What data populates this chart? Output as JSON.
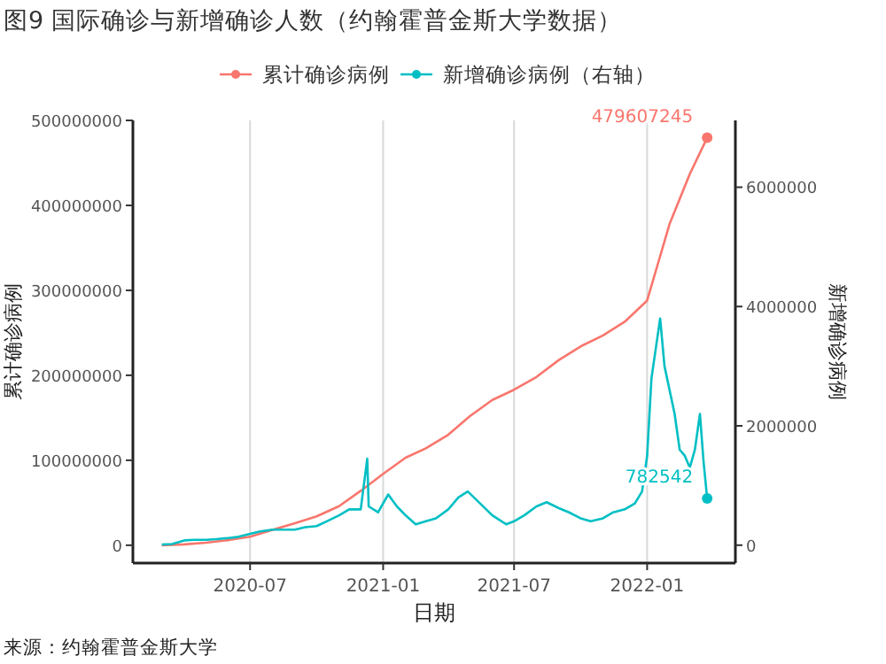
{
  "chart_data": {
    "type": "line",
    "title": "图9 国际确诊与新增确诊人数（约翰霍普金斯大学数据）",
    "xlabel": "日期",
    "ylabel": "累计确诊病例",
    "y2label": "新增确诊病例",
    "xlim": [
      "2020-01-21",
      "2022-05-03"
    ],
    "xticks": [
      {
        "value": "2020-07-01",
        "label": "2020-07"
      },
      {
        "value": "2021-01-01",
        "label": "2021-01"
      },
      {
        "value": "2021-07-01",
        "label": "2021-07"
      },
      {
        "value": "2022-01-01",
        "label": "2022-01"
      }
    ],
    "ylim": [
      -21000000,
      500000000
    ],
    "yticks": [
      0,
      100000000,
      200000000,
      300000000,
      400000000,
      500000000
    ],
    "y2lim": [
      -300000,
      7120000
    ],
    "y2ticks": [
      0,
      2000000,
      4000000,
      6000000
    ],
    "grid": "x",
    "legend": "top",
    "marker": "none",
    "line_style": "solid",
    "series": [
      {
        "name": "累计确诊病例",
        "color": "#f8766d",
        "x": [
          "2020-03-01",
          "2020-04-01",
          "2020-05-01",
          "2020-06-01",
          "2020-07-01",
          "2020-08-01",
          "2020-09-01",
          "2020-10-01",
          "2020-11-01",
          "2020-12-01",
          "2021-01-01",
          "2021-02-01",
          "2021-03-01",
          "2021-04-01",
          "2021-05-01",
          "2021-06-01",
          "2021-07-01",
          "2021-08-01",
          "2021-09-01",
          "2021-10-01",
          "2021-11-01",
          "2021-12-01",
          "2022-01-01",
          "2022-02-01",
          "2022-03-01",
          "2022-03-25"
        ],
        "values": [
          0,
          1000000,
          3000000,
          6000000,
          10000000,
          18000000,
          26000000,
          34000000,
          46000000,
          64000000,
          84000000,
          103000000,
          114000000,
          130000000,
          152000000,
          171000000,
          183000000,
          198000000,
          218000000,
          234000000,
          247000000,
          263000000,
          288000000,
          378000000,
          437000000,
          479607245
        ],
        "value_labels": [
          null,
          null,
          null,
          null,
          null,
          null,
          null,
          null,
          null,
          null,
          null,
          null,
          null,
          null,
          null,
          null,
          null,
          null,
          null,
          null,
          null,
          null,
          null,
          null,
          null,
          "479607245"
        ]
      },
      {
        "name": "新增确诊病例（右轴）",
        "color": "#00bfc4",
        "axis": "y2",
        "x": [
          "2020-03-01",
          "2020-03-15",
          "2020-04-01",
          "2020-04-15",
          "2020-05-01",
          "2020-05-15",
          "2020-06-01",
          "2020-06-15",
          "2020-07-01",
          "2020-07-15",
          "2020-08-01",
          "2020-08-15",
          "2020-09-01",
          "2020-09-15",
          "2020-10-01",
          "2020-10-15",
          "2020-11-01",
          "2020-11-15",
          "2020-12-01",
          "2020-12-10",
          "2020-12-12",
          "2020-12-25",
          "2021-01-08",
          "2021-01-20",
          "2021-02-01",
          "2021-02-15",
          "2021-03-01",
          "2021-03-15",
          "2021-04-01",
          "2021-04-15",
          "2021-04-28",
          "2021-05-15",
          "2021-06-01",
          "2021-06-20",
          "2021-07-01",
          "2021-07-15",
          "2021-08-01",
          "2021-08-15",
          "2021-09-01",
          "2021-09-15",
          "2021-10-01",
          "2021-10-15",
          "2021-11-01",
          "2021-11-15",
          "2021-12-01",
          "2021-12-15",
          "2021-12-25",
          "2022-01-01",
          "2022-01-07",
          "2022-01-13",
          "2022-01-19",
          "2022-01-25",
          "2022-02-01",
          "2022-02-08",
          "2022-02-15",
          "2022-02-22",
          "2022-03-01",
          "2022-03-08",
          "2022-03-15",
          "2022-03-20",
          "2022-03-25"
        ],
        "values": [
          10000,
          20000,
          80000,
          90000,
          90000,
          100000,
          120000,
          140000,
          190000,
          230000,
          260000,
          260000,
          260000,
          300000,
          320000,
          400000,
          500000,
          600000,
          600000,
          1450000,
          650000,
          550000,
          850000,
          650000,
          500000,
          350000,
          400000,
          450000,
          600000,
          800000,
          900000,
          700000,
          500000,
          350000,
          400000,
          500000,
          650000,
          720000,
          620000,
          550000,
          450000,
          400000,
          450000,
          550000,
          600000,
          700000,
          900000,
          1500000,
          2800000,
          3300000,
          3800000,
          3000000,
          2600000,
          2200000,
          1600000,
          1500000,
          1300000,
          1600000,
          2200000,
          1400000,
          782542
        ],
        "value_labels": [
          null,
          null,
          null,
          null,
          null,
          null,
          null,
          null,
          null,
          null,
          null,
          null,
          null,
          null,
          null,
          null,
          null,
          null,
          null,
          null,
          null,
          null,
          null,
          null,
          null,
          null,
          null,
          null,
          null,
          null,
          null,
          null,
          null,
          null,
          null,
          null,
          null,
          null,
          null,
          null,
          null,
          null,
          null,
          null,
          null,
          null,
          null,
          null,
          null,
          null,
          null,
          null,
          null,
          null,
          null,
          null,
          null,
          null,
          null,
          null,
          "782542"
        ]
      }
    ],
    "annotations": [
      "来源：约翰霍普金斯大学"
    ]
  }
}
